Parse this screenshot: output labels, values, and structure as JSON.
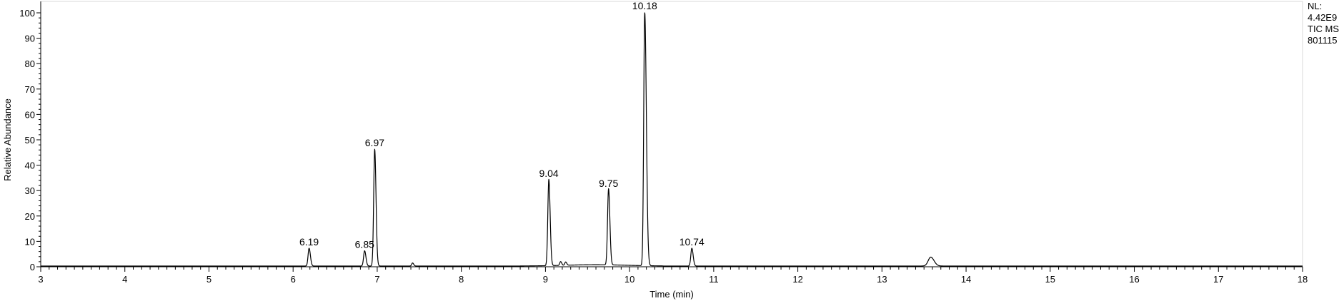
{
  "chart_data": {
    "type": "line",
    "xlabel": "Time (min)",
    "ylabel": "Relative Abundance",
    "xlim": [
      3,
      18
    ],
    "ylim": [
      0,
      100
    ],
    "x_ticks": [
      3,
      4,
      5,
      6,
      7,
      8,
      9,
      10,
      11,
      12,
      13,
      14,
      15,
      16,
      17,
      18
    ],
    "y_ticks": [
      0,
      10,
      20,
      30,
      40,
      50,
      60,
      70,
      80,
      90,
      100
    ],
    "grid": false,
    "info_block": [
      "NL:",
      "4.42E9",
      "TIC  MS",
      "801115"
    ],
    "peaks": [
      {
        "label": "6.19",
        "x": 6.19,
        "y": 7
      },
      {
        "label": "6.85",
        "x": 6.85,
        "y": 6
      },
      {
        "label": "6.97",
        "x": 6.97,
        "y": 46
      },
      {
        "label": "9.04",
        "x": 9.04,
        "y": 34
      },
      {
        "label": "9.75",
        "x": 9.75,
        "y": 30
      },
      {
        "label": "10.18",
        "x": 10.18,
        "y": 100
      },
      {
        "label": "10.74",
        "x": 10.74,
        "y": 7
      }
    ],
    "minor_peaks": [
      {
        "x": 7.42,
        "y": 1.2
      },
      {
        "x": 9.18,
        "y": 1.5
      },
      {
        "x": 9.24,
        "y": 1.3
      },
      {
        "x": 13.58,
        "y": 3.5
      }
    ],
    "baseline": 0.3
  }
}
